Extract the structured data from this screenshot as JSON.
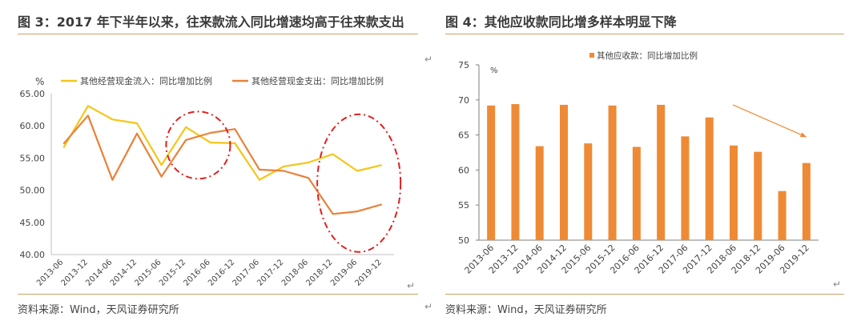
{
  "left_panel": {
    "title": "图 3：2017 年下半年以来，往来款流入同比增速均高于往来款支出",
    "source": "资料来源：Wind，天风证券研究所"
  },
  "right_panel": {
    "title": "图 4：其他应收款同比增多样本明显下降",
    "source": "资料来源：Wind，天风证券研究所"
  },
  "return_glyph": "↵",
  "chart_data": [
    {
      "type": "line",
      "ylabel": "%",
      "ylim": [
        40,
        65
      ],
      "y_ticks": [
        "65.00",
        "60.00",
        "55.00",
        "50.00",
        "45.00",
        "40.00"
      ],
      "categories": [
        "2013-06",
        "2013-12",
        "2014-06",
        "2014-12",
        "2015-06",
        "2015-12",
        "2016-06",
        "2016-12",
        "2017-06",
        "2017-12",
        "2018-06",
        "2018-12",
        "2019-06",
        "2019-12"
      ],
      "series": [
        {
          "name": "其他经营现金流入：同比增加比例",
          "color": "#f5c518",
          "values": [
            56.6,
            63.1,
            61.0,
            60.4,
            53.9,
            59.8,
            57.4,
            57.3,
            51.6,
            53.7,
            54.3,
            55.6,
            53.0,
            53.9
          ]
        },
        {
          "name": "其他经营现金支出：同比增加比例",
          "color": "#e8823a",
          "values": [
            57.2,
            61.6,
            51.6,
            58.8,
            52.1,
            57.8,
            58.9,
            59.5,
            53.2,
            53.0,
            51.9,
            46.3,
            46.7,
            47.8
          ]
        }
      ],
      "legend": "top",
      "annotations": [
        "dash-dot red ellipse around 2015-12 to 2016-06",
        "dash-dot red ellipse around 2018-12 to 2019-12"
      ]
    },
    {
      "type": "bar",
      "ylabel": "%",
      "ylim": [
        50,
        75
      ],
      "y_ticks": [
        "75",
        "70",
        "65",
        "60",
        "55",
        "50"
      ],
      "categories": [
        "2013-06",
        "2013-12",
        "2014-06",
        "2014-12",
        "2015-06",
        "2015-12",
        "2016-06",
        "2016-12",
        "2017-06",
        "2017-12",
        "2018-06",
        "2018-12",
        "2019-06",
        "2019-12"
      ],
      "series": [
        {
          "name": "其他应收款：同比增加比例",
          "color": "#ee8a35",
          "values": [
            69.2,
            69.4,
            63.4,
            69.3,
            63.8,
            69.2,
            63.3,
            69.3,
            64.8,
            67.5,
            63.5,
            62.6,
            57.0,
            61.0
          ]
        }
      ],
      "legend": "top",
      "annotations": [
        "downward trend arrow from 2018-06 to 2019-12"
      ]
    }
  ]
}
